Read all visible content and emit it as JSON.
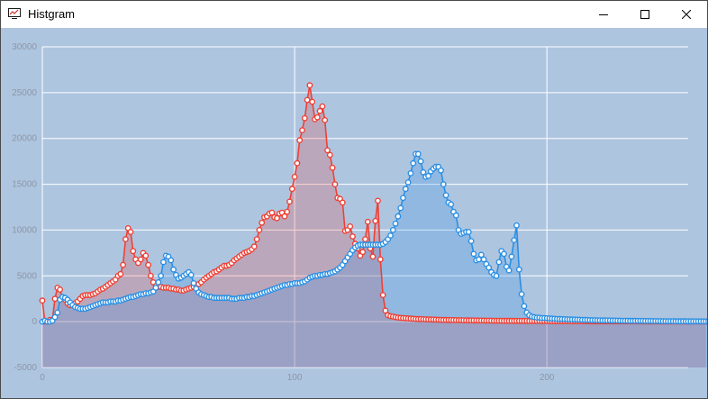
{
  "window": {
    "title": "Histgram"
  },
  "colors": {
    "background": "#aec5e0",
    "grid": "#ffffff",
    "red": "#ee4035",
    "blue": "#2b8fe3"
  },
  "chart_data": {
    "type": "line",
    "title": "",
    "xlim": [
      0,
      256
    ],
    "ylim": [
      -5000,
      30000
    ],
    "x_ticks": [
      "0",
      "100",
      "200"
    ],
    "y_ticks": [
      "30000",
      "25000",
      "20000",
      "15000",
      "10000",
      "5000",
      "0",
      "-5000"
    ],
    "grid": true,
    "filled_area": true,
    "markers": "circle",
    "series": [
      {
        "color": "#ee4035",
        "values": [
          2300,
          0,
          0,
          200,
          200,
          2500,
          3700,
          3500,
          2500,
          2400,
          2000,
          1800,
          1800,
          2000,
          2200,
          2500,
          2800,
          2900,
          2900,
          2900,
          3000,
          3100,
          3300,
          3500,
          3600,
          3800,
          4000,
          4200,
          4400,
          4600,
          5000,
          5200,
          6200,
          9000,
          10200,
          9800,
          7700,
          6800,
          6400,
          6800,
          7500,
          7200,
          6200,
          5000,
          4300,
          3900,
          3800,
          3800,
          3700,
          3700,
          3700,
          3600,
          3600,
          3500,
          3500,
          3400,
          3400,
          3500,
          3600,
          3700,
          3800,
          3900,
          4100,
          4300,
          4600,
          4800,
          5000,
          5200,
          5400,
          5500,
          5700,
          5900,
          6100,
          6100,
          6200,
          6400,
          6700,
          6900,
          7100,
          7300,
          7500,
          7600,
          7700,
          7900,
          8200,
          9000,
          10000,
          10800,
          11400,
          11500,
          11800,
          11900,
          11400,
          11300,
          11800,
          11900,
          11500,
          12000,
          13100,
          14500,
          15800,
          17300,
          19800,
          20900,
          22200,
          24200,
          25800,
          24000,
          22100,
          22300,
          23000,
          23500,
          22000,
          18700,
          18200,
          16800,
          15000,
          13500,
          13400,
          13000,
          9900,
          10000,
          10400,
          9300,
          8500,
          8000,
          7200,
          7600,
          9000,
          10900,
          8000,
          7100,
          11000,
          13200,
          6800,
          2900,
          1200,
          700,
          600,
          550,
          500,
          450,
          420,
          400,
          380,
          360,
          340,
          320,
          300,
          290,
          280,
          270,
          260,
          250,
          240,
          230,
          220,
          210,
          200,
          195,
          190,
          185,
          180,
          175,
          170,
          165,
          160,
          155,
          150,
          145,
          140,
          135,
          130,
          125,
          120,
          120,
          115,
          110,
          110,
          105,
          100,
          100,
          100,
          95,
          95,
          90,
          90,
          90,
          85,
          85,
          80,
          80,
          80,
          75,
          75,
          70,
          70,
          70,
          65,
          65,
          60,
          60,
          60,
          55,
          55,
          55,
          50,
          50,
          50,
          50,
          45,
          45,
          45,
          40,
          40,
          40,
          40,
          35,
          35,
          35,
          35,
          30,
          30,
          30,
          30,
          30,
          25,
          25,
          25,
          25,
          25,
          20,
          20,
          20,
          20,
          20,
          20,
          15,
          15,
          15,
          15,
          15,
          15,
          15,
          10,
          10,
          10,
          10,
          10,
          10,
          10,
          10,
          10,
          10,
          10,
          10,
          10,
          10,
          10,
          10,
          10,
          10,
          10,
          10
        ]
      },
      {
        "color": "#2b8fe3",
        "values": [
          0,
          100,
          0,
          0,
          100,
          500,
          1000,
          2400,
          2700,
          2600,
          2400,
          2100,
          1800,
          1600,
          1500,
          1400,
          1400,
          1400,
          1500,
          1600,
          1700,
          1800,
          1900,
          2000,
          2100,
          2100,
          2100,
          2200,
          2200,
          2200,
          2300,
          2300,
          2400,
          2500,
          2600,
          2700,
          2700,
          2800,
          2900,
          3000,
          3000,
          3100,
          3100,
          3200,
          3300,
          3700,
          4300,
          5000,
          6500,
          7200,
          7100,
          6700,
          5700,
          5100,
          4700,
          4800,
          5000,
          5200,
          5400,
          5100,
          4200,
          3600,
          3200,
          3000,
          2900,
          2800,
          2700,
          2700,
          2600,
          2600,
          2600,
          2600,
          2600,
          2600,
          2600,
          2500,
          2500,
          2500,
          2600,
          2600,
          2600,
          2700,
          2700,
          2800,
          2800,
          2900,
          3000,
          3100,
          3200,
          3300,
          3400,
          3500,
          3600,
          3700,
          3800,
          3900,
          4000,
          4000,
          4100,
          4100,
          4200,
          4200,
          4200,
          4300,
          4400,
          4600,
          4800,
          4900,
          5000,
          5000,
          5100,
          5100,
          5200,
          5200,
          5300,
          5400,
          5500,
          5700,
          5900,
          6200,
          6600,
          7000,
          7400,
          7800,
          8100,
          8300,
          8400,
          8400,
          8400,
          8400,
          8400,
          8400,
          8400,
          8400,
          8400,
          8500,
          8700,
          9000,
          9400,
          10000,
          10700,
          11500,
          12400,
          13500,
          14500,
          15200,
          16200,
          17300,
          18300,
          18300,
          17500,
          16300,
          15800,
          15900,
          16400,
          16700,
          16900,
          16900,
          16500,
          15000,
          13800,
          13000,
          12800,
          12000,
          11600,
          10000,
          9600,
          9700,
          9800,
          9800,
          8800,
          7400,
          6700,
          6800,
          7300,
          6800,
          6300,
          5900,
          5400,
          5100,
          5000,
          6500,
          7700,
          7400,
          6000,
          5600,
          7100,
          8900,
          10500,
          5700,
          3000,
          1700,
          1000,
          700,
          550,
          500,
          450,
          450,
          400,
          400,
          380,
          360,
          340,
          320,
          300,
          290,
          280,
          270,
          260,
          250,
          240,
          230,
          220,
          210,
          200,
          190,
          180,
          170,
          160,
          160,
          150,
          150,
          140,
          140,
          130,
          130,
          120,
          120,
          110,
          110,
          100,
          100,
          100,
          90,
          90,
          90,
          80,
          80,
          80,
          70,
          70,
          70,
          60,
          60,
          60,
          60,
          50,
          50,
          50,
          50,
          50,
          40,
          40,
          40,
          40,
          40,
          30,
          30,
          30,
          30,
          30,
          30,
          20,
          20,
          20,
          20,
          20,
          20,
          20,
          20
        ]
      }
    ]
  }
}
